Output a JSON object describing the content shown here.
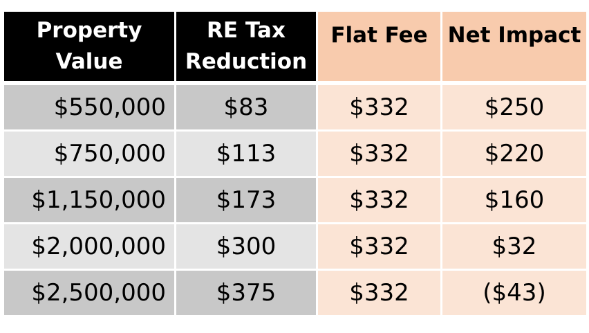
{
  "table": {
    "headers": {
      "property_value": [
        "Property",
        "Value"
      ],
      "re_tax_reduction": [
        "RE Tax",
        "Reduction"
      ],
      "flat_fee": "Flat Fee",
      "net_impact": "Net Impact"
    },
    "rows": [
      {
        "property_value": "$550,000",
        "re_tax_reduction": "$83",
        "flat_fee": "$332",
        "net_impact": "$250"
      },
      {
        "property_value": "$750,000",
        "re_tax_reduction": "$113",
        "flat_fee": "$332",
        "net_impact": "$220"
      },
      {
        "property_value": "$1,150,000",
        "re_tax_reduction": "$173",
        "flat_fee": "$332",
        "net_impact": "$160"
      },
      {
        "property_value": "$2,000,000",
        "re_tax_reduction": "$300",
        "flat_fee": "$332",
        "net_impact": "$32"
      },
      {
        "property_value": "$2,500,000",
        "re_tax_reduction": "$375",
        "flat_fee": "$332",
        "net_impact": "($43)"
      }
    ]
  },
  "colors": {
    "header_dark": "#000000",
    "header_peach": "#f8cbad",
    "row_gray_dark": "#c8c8c8",
    "row_gray_light": "#e4e4e4",
    "cell_peach": "#fbe4d5"
  }
}
